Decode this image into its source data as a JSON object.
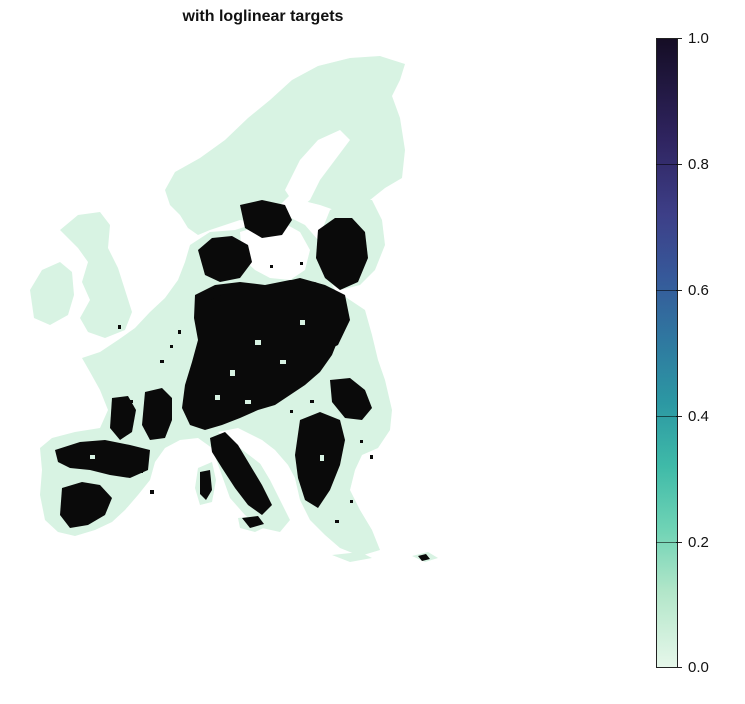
{
  "title": "with loglinear targets",
  "legend": {
    "ticks": [
      "1.0",
      "0.8",
      "0.6",
      "0.4",
      "0.2",
      "0.0"
    ],
    "range": [
      0.0,
      1.0
    ],
    "colors": {
      "low": "#e6f7ea",
      "mid": "#2c98a3",
      "high": "#150d25"
    }
  },
  "map": {
    "region": "Europe",
    "base_color": "#d8f3e3",
    "high_value_color": "#000000"
  }
}
